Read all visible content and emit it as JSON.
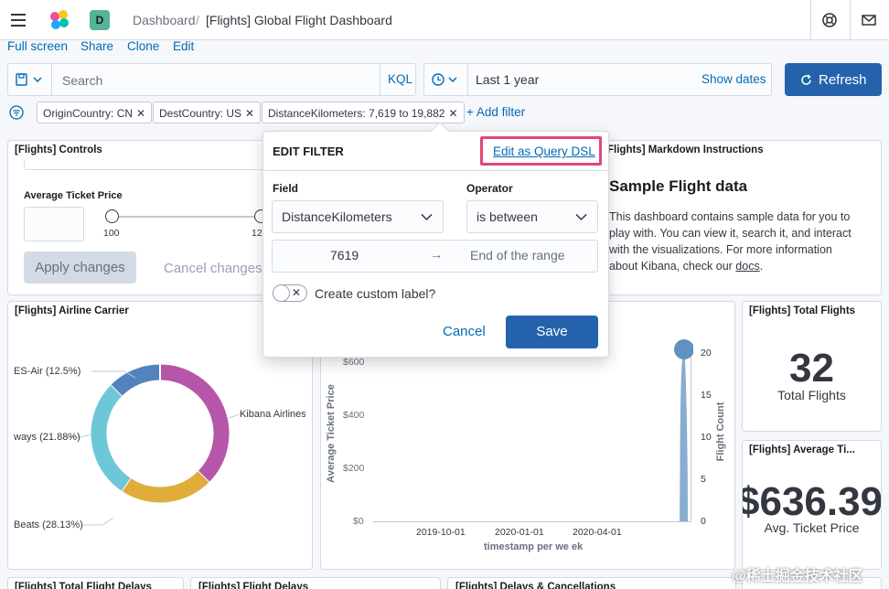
{
  "header": {
    "space_initial": "D",
    "breadcrumb_root": "Dashboard",
    "breadcrumb_sep": "/",
    "breadcrumb_current": "[Flights] Global Flight Dashboard"
  },
  "subnav": {
    "full_screen": "Full screen",
    "share": "Share",
    "clone": "Clone",
    "edit": "Edit"
  },
  "query": {
    "placeholder": "Search",
    "language": "KQL"
  },
  "time": {
    "value": "Last 1 year",
    "show_dates": "Show dates",
    "refresh": "Refresh"
  },
  "filters": {
    "pills": [
      "OriginCountry: CN",
      "DestCountry: US",
      "DistanceKilometers: 7,619 to 19,882"
    ],
    "add_filter": "+ Add filter"
  },
  "controls_panel": {
    "title": "[Flights] Controls",
    "slider_label": "Average Ticket Price",
    "slider_min": "100",
    "slider_max_partial": "12",
    "apply": "Apply changes",
    "cancel": "Cancel changes"
  },
  "markdown_panel": {
    "title": "Flights] Markdown Instructions",
    "heading": "Sample Flight data",
    "body_lines": [
      "This dashboard contains sample data for you to",
      "play with. You can view it, search it, and interact",
      "with the visualizations. For more information"
    ],
    "body_last_prefix": "about Kibana, check our ",
    "docs_link": "docs",
    "body_last_suffix": "."
  },
  "carrier_panel": {
    "title": "[Flights] Airline Carrier",
    "labels": [
      "ES-Air (12.5%)",
      "Kibana Airlines",
      "ways (21.88%)",
      "Beats (28.13%)"
    ]
  },
  "chart_data": {
    "type": "pie",
    "categories": [
      "Kibana Airlines",
      "Logstash Airways",
      "JetBeats",
      "ES-Air"
    ],
    "values": [
      37.5,
      21.88,
      28.13,
      12.5
    ],
    "colors": [
      "#b656a9",
      "#e0ac3a",
      "#6dc7d9",
      "#5383be"
    ]
  },
  "ticket_chart": {
    "y_left_label": "Average Ticket Price",
    "y_right_label": "Flight Count",
    "x_label": "timestamp per we ek",
    "y_left_ticks": [
      "$600",
      "$400",
      "$200",
      "$0"
    ],
    "y_right_ticks": [
      "20",
      "15",
      "10",
      "5",
      "0"
    ],
    "x_ticks": [
      "2019-10-01",
      "2020-01-01",
      "2020-04-01"
    ]
  },
  "total_flights": {
    "title": "[Flights] Total Flights",
    "value": "32",
    "caption": "Total Flights"
  },
  "avg_ticket": {
    "title": "[Flights] Average Ti...",
    "value": "$636.39",
    "caption": "Avg. Ticket Price"
  },
  "bottom_titles": [
    "[Flights] Total Flight Delays",
    "[Flights] Flight Delays",
    "[Flights] Delays & Cancellations"
  ],
  "edit_filter": {
    "title": "EDIT FILTER",
    "query_dsl_link": "Edit as Query DSL",
    "field_label": "Field",
    "field_value": "DistanceKilometers",
    "operator_label": "Operator",
    "operator_value": "is between",
    "range_start": "7619",
    "range_arrow": "→",
    "range_end_placeholder": "End of the range",
    "custom_label_text": "Create custom label?",
    "cancel": "Cancel",
    "save": "Save"
  },
  "watermark": "@稀土掘金技术社区"
}
